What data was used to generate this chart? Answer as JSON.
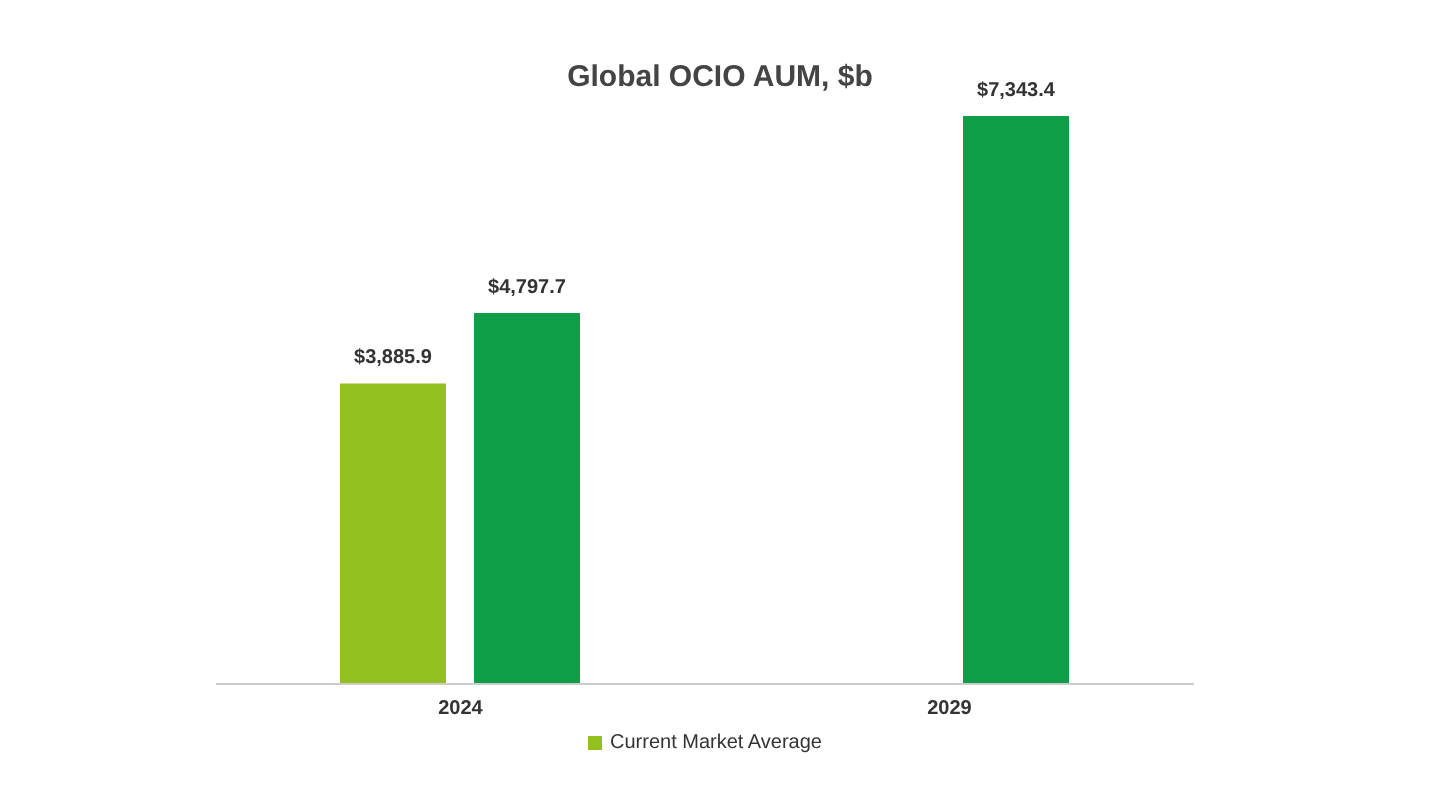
{
  "chart_data": {
    "type": "bar",
    "title": "Global OCIO AUM, $b",
    "categories": [
      "2024",
      "2029"
    ],
    "series": [
      {
        "name": "Current Market Average",
        "color": "#93c01f",
        "values": [
          3885.9,
          null
        ],
        "value_labels": [
          "$3,885.9",
          null
        ]
      },
      {
        "color": "#0f9d48",
        "values": [
          4797.7,
          7343.4
        ],
        "value_labels": [
          "$4,797.7",
          "$7,343.4"
        ]
      }
    ],
    "tick_labels": "x",
    "legend": "bottom",
    "grid": false
  }
}
